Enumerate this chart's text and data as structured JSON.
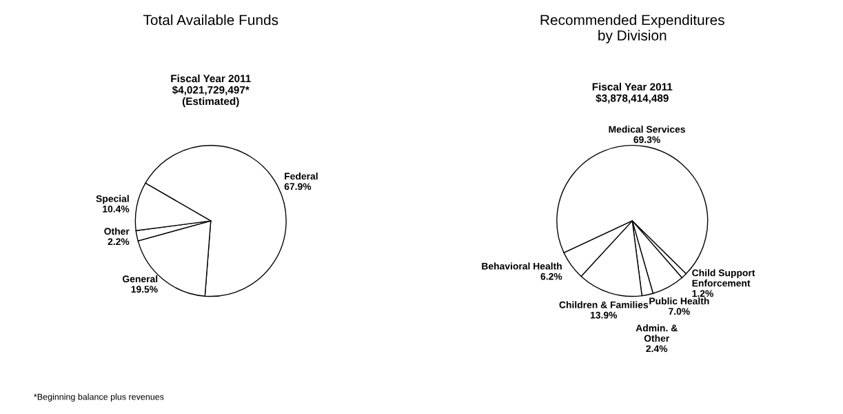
{
  "chart_data": [
    {
      "type": "pie",
      "title": "Total Available Funds",
      "subtitle": "Fiscal Year 2011\n$4,021,729,497*\n(Estimated)",
      "categories": [
        "Federal",
        "General",
        "Other",
        "Special"
      ],
      "values": [
        67.9,
        19.5,
        2.2,
        10.4
      ],
      "value_labels": [
        "67.9%",
        "19.5%",
        "2.2%",
        "10.4%"
      ],
      "colors": [
        "#ffffff",
        "#ffffff",
        "#ffffff",
        "#ffffff"
      ],
      "annotations": [
        "*Beginning balance plus revenues"
      ]
    },
    {
      "type": "pie",
      "title": "Recommended Expenditures\nby Division",
      "subtitle": "Fiscal Year 2011\n$3,878,414,489",
      "categories": [
        "Medical Services",
        "Child Support\nEnforcement",
        "Public Health",
        "Admin. &\nOther",
        "Children & Families",
        "Behavioral Health"
      ],
      "values": [
        69.3,
        1.2,
        7.0,
        2.4,
        13.9,
        6.2
      ],
      "value_labels": [
        "69.3%",
        "1.2%",
        "7.0%",
        "2.4%",
        "13.9%",
        "6.2%"
      ],
      "colors": [
        "#ffffff",
        "#ffffff",
        "#ffffff",
        "#ffffff",
        "#ffffff",
        "#ffffff"
      ]
    }
  ]
}
